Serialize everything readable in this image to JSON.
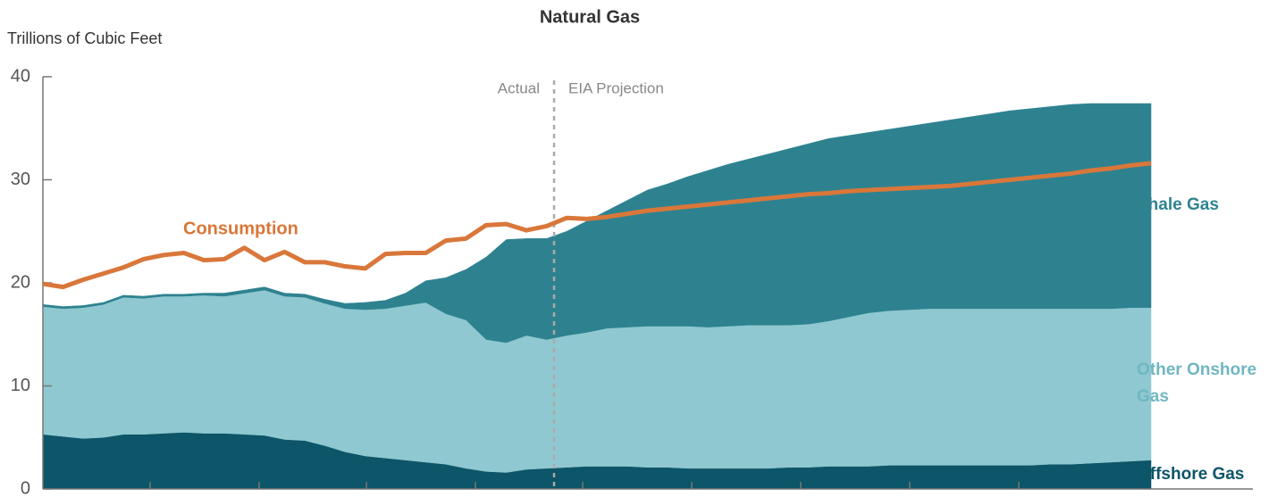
{
  "chart_data": {
    "type": "area",
    "title": "Natural Gas",
    "y_label": "Trillions of Cubic Feet",
    "annotations": [
      "Actual",
      "EIA Projection"
    ],
    "stacked": true,
    "ylim": [
      0,
      40
    ],
    "yticks": [
      0,
      10,
      20,
      30,
      40
    ],
    "grid": false,
    "categories": [
      null,
      null,
      null,
      null,
      null,
      null,
      null,
      null,
      null,
      null,
      null,
      null,
      null,
      null,
      null,
      null,
      null,
      null,
      null,
      null,
      null,
      null,
      null,
      null,
      null,
      null,
      null,
      null,
      null,
      null,
      null,
      null,
      null,
      null,
      null,
      null,
      null,
      null,
      null,
      null,
      null,
      null,
      null,
      null,
      null,
      null,
      null,
      null,
      null,
      null,
      null,
      null,
      null,
      null,
      null,
      null
    ],
    "series": [
      {
        "name": "Offshore Gas",
        "color": "#0d5568",
        "values": [
          5.3,
          5.1,
          4.9,
          5.0,
          5.3,
          5.3,
          5.4,
          5.5,
          5.4,
          5.4,
          5.3,
          5.2,
          4.8,
          4.7,
          4.2,
          3.6,
          3.2,
          3.0,
          2.8,
          2.6,
          2.4,
          2.0,
          1.7,
          1.6,
          1.9,
          2.0,
          2.1,
          2.2,
          2.2,
          2.2,
          2.1,
          2.1,
          2.0,
          2.0,
          2.0,
          2.0,
          2.0,
          2.1,
          2.1,
          2.2,
          2.2,
          2.2,
          2.3,
          2.3,
          2.3,
          2.3,
          2.3,
          2.3,
          2.3,
          2.3,
          2.4,
          2.4,
          2.5,
          2.6,
          2.7,
          2.8
        ]
      },
      {
        "name": "Other Onshore Gas",
        "color": "#8fc8d0",
        "values": [
          12.4,
          12.4,
          12.7,
          12.9,
          13.3,
          13.2,
          13.3,
          13.2,
          13.4,
          13.3,
          13.7,
          14.1,
          13.9,
          13.9,
          13.8,
          13.9,
          14.2,
          14.5,
          15.0,
          15.5,
          14.6,
          14.4,
          12.8,
          12.6,
          13.0,
          12.5,
          12.8,
          13.0,
          13.4,
          13.5,
          13.7,
          13.7,
          13.8,
          13.7,
          13.8,
          13.9,
          13.9,
          13.8,
          13.9,
          14.1,
          14.5,
          14.9,
          15.0,
          15.1,
          15.2,
          15.2,
          15.2,
          15.2,
          15.2,
          15.2,
          15.1,
          15.1,
          15.0,
          14.9,
          14.9,
          14.8
        ]
      },
      {
        "name": "Shale Gas",
        "color": "#2e8290",
        "values": [
          0.2,
          0.2,
          0.2,
          0.2,
          0.2,
          0.2,
          0.2,
          0.2,
          0.2,
          0.3,
          0.3,
          0.3,
          0.3,
          0.3,
          0.4,
          0.5,
          0.7,
          0.8,
          1.2,
          2.1,
          3.5,
          4.9,
          8.0,
          10.0,
          9.4,
          9.8,
          10.1,
          10.8,
          11.4,
          12.3,
          13.2,
          13.8,
          14.5,
          15.2,
          15.7,
          16.1,
          16.6,
          17.1,
          17.5,
          17.7,
          17.6,
          17.5,
          17.6,
          17.8,
          18.0,
          18.3,
          18.6,
          18.9,
          19.2,
          19.4,
          19.6,
          19.8,
          19.9,
          19.9,
          19.8,
          19.8
        ]
      },
      {
        "name": "Consumption",
        "color": "#d9773a",
        "type": "line",
        "values": [
          19.9,
          19.6,
          20.3,
          20.9,
          21.5,
          22.3,
          22.7,
          22.9,
          22.2,
          22.3,
          23.4,
          22.2,
          23.0,
          22.0,
          22.0,
          21.6,
          21.4,
          22.8,
          22.9,
          22.9,
          24.1,
          24.3,
          25.6,
          25.7,
          25.1,
          25.5,
          26.3,
          26.2,
          26.4,
          26.7,
          27.0,
          27.2,
          27.4,
          27.6,
          27.8,
          28.0,
          28.2,
          28.4,
          28.6,
          28.7,
          28.9,
          29.0,
          29.1,
          29.2,
          29.3,
          29.4,
          29.6,
          29.8,
          30.0,
          30.2,
          30.4,
          30.6,
          30.9,
          31.1,
          31.4,
          31.6
        ]
      }
    ]
  }
}
